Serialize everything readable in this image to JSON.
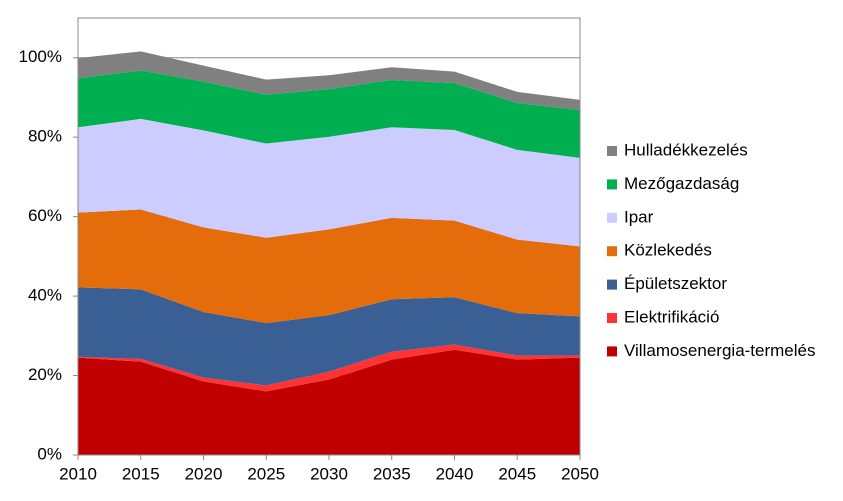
{
  "chart_data": {
    "type": "stacked_area",
    "x": [
      2010,
      2015,
      2020,
      2025,
      2030,
      2035,
      2040,
      2045,
      2050
    ],
    "xlim": [
      2010,
      2050
    ],
    "xticks": [
      2010,
      2015,
      2020,
      2025,
      2030,
      2035,
      2040,
      2045,
      2050
    ],
    "ylim": [
      0,
      110
    ],
    "yticks": [
      {
        "value": 0,
        "label": "0%"
      },
      {
        "value": 20,
        "label": "20%"
      },
      {
        "value": 40,
        "label": "40%"
      },
      {
        "value": 60,
        "label": "60%"
      },
      {
        "value": 80,
        "label": "80%"
      },
      {
        "value": 100,
        "label": "100%"
      }
    ],
    "grid": true,
    "legend": "right",
    "series": [
      {
        "name": "Villamosenergia-termelés",
        "color": "#c00000",
        "values": [
          24.5,
          23.5,
          18.5,
          16,
          19,
          24,
          26.5,
          24,
          24.5
        ]
      },
      {
        "name": "Elektrifikáció",
        "color": "#ff3333",
        "values": [
          0.2,
          0.7,
          1,
          1.5,
          2,
          2,
          1.3,
          1,
          0.5
        ]
      },
      {
        "name": "Épületszektor",
        "color": "#3a5f94",
        "values": [
          17.5,
          17.5,
          16.5,
          15.7,
          14.2,
          13.2,
          11.9,
          10.7,
          9.9
        ]
      },
      {
        "name": "Közlekedés",
        "color": "#e46c0a",
        "values": [
          18.8,
          20.1,
          21.3,
          21.5,
          21.6,
          20.5,
          19.3,
          18.5,
          17.6
        ]
      },
      {
        "name": "Ipar",
        "color": "#ccccff",
        "values": [
          21.5,
          22.8,
          24.4,
          23.7,
          23.3,
          22.8,
          22.8,
          22.6,
          22.3
        ]
      },
      {
        "name": "Mezőgazdaság",
        "color": "#00b050",
        "values": [
          12.3,
          12.2,
          12.3,
          12.3,
          12,
          11.9,
          11.8,
          11.8,
          12
        ]
      },
      {
        "name": "Hulladékkezelés",
        "color": "#808080",
        "values": [
          5.1,
          4.8,
          4,
          3.8,
          3.5,
          3.2,
          2.9,
          2.8,
          2.6
        ]
      }
    ]
  }
}
